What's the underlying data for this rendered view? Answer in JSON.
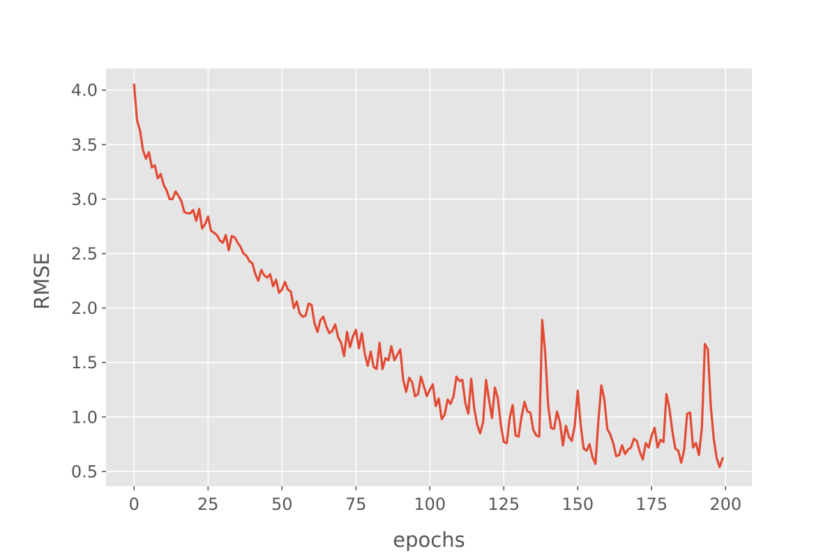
{
  "chart_data": {
    "type": "line",
    "title": "",
    "xlabel": "epochs",
    "ylabel": "RMSE",
    "xlim": [
      -9.5,
      208.9
    ],
    "ylim": [
      0.365,
      4.2
    ],
    "xticks": [
      0,
      25,
      50,
      75,
      100,
      125,
      150,
      175,
      200
    ],
    "xtick_labels": [
      "0",
      "25",
      "50",
      "75",
      "100",
      "125",
      "150",
      "175",
      "200"
    ],
    "yticks": [
      0.5,
      1.0,
      1.5,
      2.0,
      2.5,
      3.0,
      3.5,
      4.0
    ],
    "ytick_labels": [
      "0.5",
      "1.0",
      "1.5",
      "2.0",
      "2.5",
      "3.0",
      "3.5",
      "4.0"
    ],
    "grid": true,
    "style": "ggplot",
    "colors": {
      "line": "#e24a33",
      "plot_background": "#e5e5e5",
      "grid": "#ffffff",
      "text": "#555555"
    },
    "series": [
      {
        "name": "",
        "x": [
          0,
          1,
          2,
          3,
          4,
          5,
          6,
          7,
          8,
          9,
          10,
          11,
          12,
          13,
          14,
          15,
          16,
          17,
          18,
          19,
          20,
          21,
          22,
          23,
          24,
          25,
          26,
          27,
          28,
          29,
          30,
          31,
          32,
          33,
          34,
          35,
          36,
          37,
          38,
          39,
          40,
          41,
          42,
          43,
          44,
          45,
          46,
          47,
          48,
          49,
          50,
          51,
          52,
          53,
          54,
          55,
          56,
          57,
          58,
          59,
          60,
          61,
          62,
          63,
          64,
          65,
          66,
          67,
          68,
          69,
          70,
          71,
          72,
          73,
          74,
          75,
          76,
          77,
          78,
          79,
          80,
          81,
          82,
          83,
          84,
          85,
          86,
          87,
          88,
          89,
          90,
          91,
          92,
          93,
          94,
          95,
          96,
          97,
          98,
          99,
          100,
          101,
          102,
          103,
          104,
          105,
          106,
          107,
          108,
          109,
          110,
          111,
          112,
          113,
          114,
          115,
          116,
          117,
          118,
          119,
          120,
          121,
          122,
          123,
          124,
          125,
          126,
          127,
          128,
          129,
          130,
          131,
          132,
          133,
          134,
          135,
          136,
          137,
          138,
          139,
          140,
          141,
          142,
          143,
          144,
          145,
          146,
          147,
          148,
          149,
          150,
          151,
          152,
          153,
          154,
          155,
          156,
          157,
          158,
          159,
          160,
          161,
          162,
          163,
          164,
          165,
          166,
          167,
          168,
          169,
          170,
          171,
          172,
          173,
          174,
          175,
          176,
          177,
          178,
          179,
          180,
          181,
          182,
          183,
          184,
          185,
          186,
          187,
          188,
          189,
          190,
          191,
          192,
          193,
          194,
          195,
          196,
          197,
          198,
          199
        ],
        "values": [
          4.05,
          3.72,
          3.63,
          3.45,
          3.37,
          3.43,
          3.29,
          3.31,
          3.19,
          3.23,
          3.13,
          3.08,
          3.0,
          3.0,
          3.07,
          3.03,
          2.98,
          2.88,
          2.87,
          2.87,
          2.9,
          2.8,
          2.91,
          2.73,
          2.77,
          2.84,
          2.71,
          2.69,
          2.67,
          2.62,
          2.6,
          2.67,
          2.53,
          2.66,
          2.65,
          2.6,
          2.56,
          2.5,
          2.48,
          2.43,
          2.41,
          2.31,
          2.25,
          2.35,
          2.3,
          2.28,
          2.31,
          2.2,
          2.26,
          2.14,
          2.17,
          2.24,
          2.17,
          2.15,
          2.0,
          2.06,
          1.95,
          1.92,
          1.93,
          2.04,
          2.03,
          1.86,
          1.78,
          1.89,
          1.92,
          1.83,
          1.77,
          1.79,
          1.85,
          1.73,
          1.68,
          1.56,
          1.78,
          1.64,
          1.74,
          1.8,
          1.63,
          1.77,
          1.58,
          1.47,
          1.6,
          1.46,
          1.44,
          1.68,
          1.44,
          1.54,
          1.52,
          1.65,
          1.52,
          1.57,
          1.62,
          1.34,
          1.23,
          1.36,
          1.32,
          1.19,
          1.21,
          1.37,
          1.28,
          1.19,
          1.25,
          1.3,
          1.1,
          1.17,
          0.98,
          1.02,
          1.16,
          1.12,
          1.19,
          1.37,
          1.33,
          1.34,
          1.13,
          1.03,
          1.35,
          1.08,
          0.93,
          0.85,
          0.95,
          1.34,
          1.16,
          0.99,
          1.27,
          1.17,
          0.93,
          0.77,
          0.76,
          0.99,
          1.11,
          0.83,
          0.82,
          1.0,
          1.14,
          1.05,
          1.04,
          0.88,
          0.83,
          0.82,
          1.89,
          1.59,
          1.11,
          0.9,
          0.89,
          1.05,
          0.95,
          0.74,
          0.92,
          0.82,
          0.78,
          0.92,
          1.24,
          0.93,
          0.71,
          0.69,
          0.75,
          0.63,
          0.57,
          0.97,
          1.29,
          1.16,
          0.89,
          0.84,
          0.76,
          0.64,
          0.65,
          0.74,
          0.66,
          0.7,
          0.72,
          0.8,
          0.78,
          0.68,
          0.61,
          0.76,
          0.72,
          0.83,
          0.9,
          0.72,
          0.79,
          0.77,
          1.21,
          1.08,
          0.87,
          0.71,
          0.69,
          0.58,
          0.7,
          1.03,
          1.04,
          0.72,
          0.76,
          0.65,
          0.91,
          1.67,
          1.62,
          1.1,
          0.8,
          0.62,
          0.54,
          0.62
        ]
      }
    ]
  }
}
